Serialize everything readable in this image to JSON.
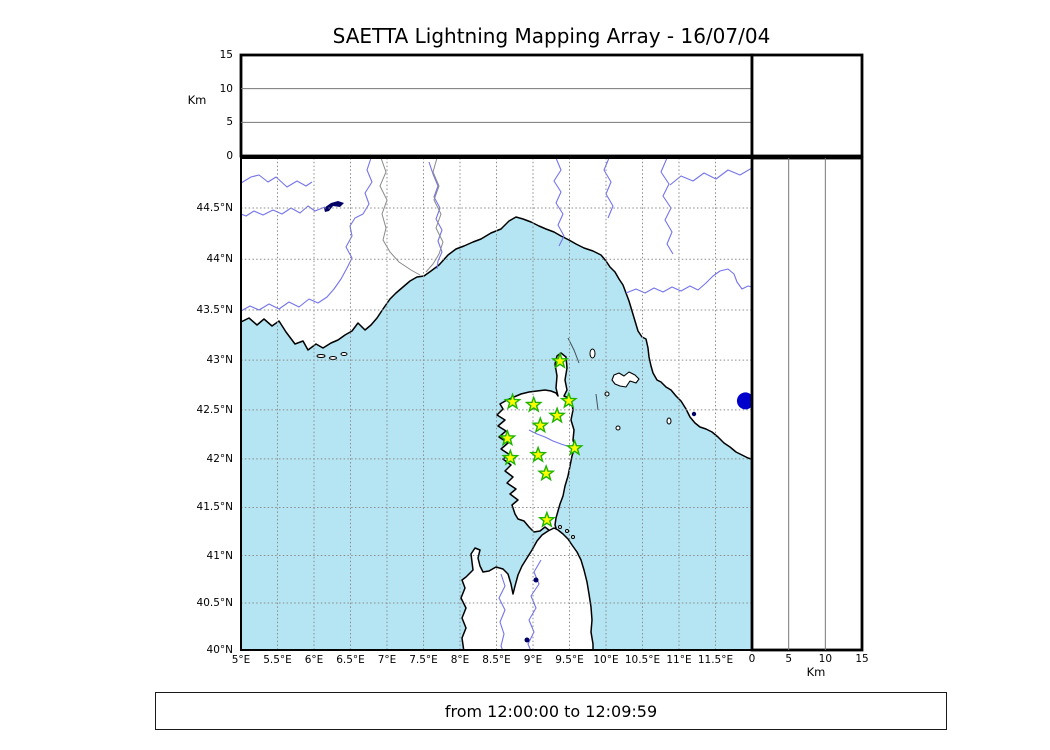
{
  "title": "SAETTA Lightning Mapping Array - 16/07/04",
  "caption": "from 12:00:00 to 12:09:59",
  "axes": {
    "km_label": "Km",
    "altitude_tick_labels": [
      "0",
      "5",
      "10",
      "15"
    ],
    "longitude_tick_labels": [
      "5°E",
      "5.5°E",
      "6°E",
      "6.5°E",
      "7°E",
      "7.5°E",
      "8°E",
      "8.5°E",
      "9°E",
      "9.5°E",
      "10°E",
      "10.5°E",
      "11°E",
      "11.5°E"
    ],
    "latitude_tick_labels": [
      "44.5°N",
      "44°N",
      "43.5°N",
      "43°N",
      "42.5°N",
      "42°N",
      "41.5°N",
      "41°N",
      "40.5°N",
      "40°N"
    ]
  },
  "chart_data": {
    "type": "scatter",
    "title": "SAETTA Lightning Mapping Array - 16/07/04",
    "time_window": "from 12:00:00 to 12:09:59",
    "map_extent": {
      "lon": [
        5,
        12
      ],
      "lat": [
        40,
        45
      ]
    },
    "altitude_axis_km": [
      0,
      5,
      10,
      15
    ],
    "stations_lon_lat": [
      {
        "lon": 9.37,
        "lat": 42.99
      },
      {
        "lon": 8.72,
        "lat": 42.58
      },
      {
        "lon": 9.01,
        "lat": 42.55
      },
      {
        "lon": 9.49,
        "lat": 42.59
      },
      {
        "lon": 9.33,
        "lat": 42.44
      },
      {
        "lon": 9.1,
        "lat": 42.34
      },
      {
        "lon": 8.65,
        "lat": 42.21
      },
      {
        "lon": 9.57,
        "lat": 42.11
      },
      {
        "lon": 8.69,
        "lat": 42.01
      },
      {
        "lon": 9.07,
        "lat": 42.04
      },
      {
        "lon": 9.18,
        "lat": 41.85
      },
      {
        "lon": 9.19,
        "lat": 41.37
      }
    ],
    "event_point": {
      "lon": 11.91,
      "lat": 42.59
    }
  },
  "colors": {
    "sea": "#b5e5f2",
    "land": "#ffffff",
    "coast": "#000000",
    "river": "#7474ec",
    "region_border": "#8a8a8a",
    "lake": "#000066",
    "station_fill": "#fdff00",
    "station_edge": "#1db400",
    "event_dot": "#0000cd"
  }
}
